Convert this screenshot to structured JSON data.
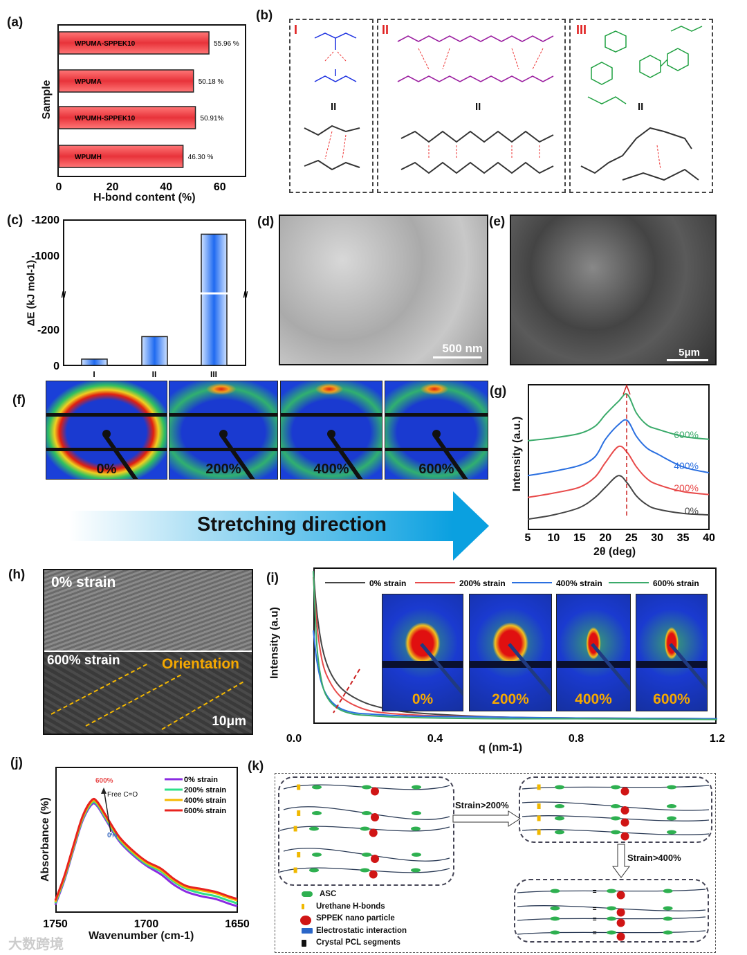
{
  "panel_labels": {
    "a": "(a)",
    "b": "(b)",
    "c": "(c)",
    "d": "(d)",
    "e": "(e)",
    "f": "(f)",
    "g": "(g)",
    "h": "(h)",
    "i": "(i)",
    "j": "(j)",
    "k": "(k)"
  },
  "chart_data": [
    {
      "id": "a",
      "type": "bar",
      "orientation": "horizontal",
      "title": "",
      "xlabel": "H-bond content (%)",
      "ylabel": "Sample",
      "xlim": [
        0,
        70
      ],
      "xticks": [
        "0",
        "20",
        "40",
        "60"
      ],
      "categories": [
        "WPUMA-SPPEK10",
        "WPUMA",
        "WPUMH-SPPEK10",
        "WPUMH"
      ],
      "values": [
        55.96,
        50.18,
        50.91,
        46.3
      ],
      "data_labels": [
        "55.96 %",
        "50.18 %",
        "50.91%",
        "46.30 %"
      ],
      "color": "#e8333a"
    },
    {
      "id": "c",
      "type": "bar",
      "title": "",
      "xlabel": "",
      "ylabel": "ΔE (kJ mol-1)",
      "axis_break": true,
      "yticks": [
        "0",
        "-200",
        "-1000",
        "-1200"
      ],
      "categories": [
        "I",
        "II",
        "III"
      ],
      "values": [
        -35,
        -160,
        -1040
      ],
      "color": "#2f7cf0"
    },
    {
      "id": "g",
      "type": "line",
      "xlabel": "2θ (deg)",
      "ylabel": "Intensity (a.u.)",
      "xlim": [
        5,
        40
      ],
      "ylim": [
        0,
        10
      ],
      "xticks": [
        "5",
        "10",
        "15",
        "20",
        "25",
        "30",
        "35",
        "40"
      ],
      "x": [
        5,
        10,
        15,
        18,
        20,
        22.5,
        24.2,
        26,
        28,
        30,
        35,
        40
      ],
      "series": [
        {
          "name": "0%",
          "color": "#444444",
          "values": [
            0.7,
            1.0,
            1.5,
            2.2,
            2.9,
            3.7,
            3.2,
            2.3,
            1.7,
            1.4,
            1.1,
            1.0
          ]
        },
        {
          "name": "200%",
          "color": "#e84a4a",
          "values": [
            2.2,
            2.5,
            2.9,
            3.6,
            4.6,
            5.7,
            5.3,
            4.3,
            3.5,
            3.1,
            2.6,
            2.4
          ]
        },
        {
          "name": "400%",
          "color": "#2a6fe0",
          "values": [
            3.7,
            4.0,
            4.4,
            5.0,
            6.2,
            7.2,
            7.5,
            6.4,
            5.6,
            5.2,
            4.3,
            3.9
          ]
        },
        {
          "name": "600%",
          "color": "#3aaa6a",
          "values": [
            6.1,
            6.3,
            6.6,
            7.1,
            7.9,
            8.8,
            9.3,
            8.0,
            7.2,
            6.9,
            6.4,
            6.2
          ]
        }
      ],
      "annotation": "dashed arrow at 2θ≈24"
    },
    {
      "id": "i",
      "type": "line",
      "xlabel": "q (nm-1)",
      "ylabel": "Intensity (a.u)",
      "xlim": [
        0.0,
        1.2
      ],
      "ylim": [
        0,
        10
      ],
      "xticks": [
        "0.0",
        "0.4",
        "0.8",
        "1.2"
      ],
      "x": [
        0.055,
        0.065,
        0.08,
        0.1,
        0.13,
        0.17,
        0.22,
        0.3,
        0.4,
        0.6,
        0.8,
        1.2
      ],
      "series": [
        {
          "name": "0% strain",
          "color": "#444444",
          "values": [
            9.9,
            7.2,
            4.9,
            3.4,
            2.3,
            1.6,
            1.1,
            0.7,
            0.5,
            0.3,
            0.25,
            0.2
          ]
        },
        {
          "name": "200% strain",
          "color": "#e84a4a",
          "values": [
            9.5,
            6.4,
            4.0,
            2.7,
            1.7,
            1.1,
            0.7,
            0.5,
            0.4,
            0.3,
            0.25,
            0.2
          ]
        },
        {
          "name": "400% strain",
          "color": "#2a6fe0",
          "values": [
            6.0,
            4.0,
            2.4,
            1.5,
            0.9,
            0.6,
            0.5,
            0.4,
            0.35,
            0.3,
            0.25,
            0.2
          ]
        },
        {
          "name": "600% strain",
          "color": "#3aaa6a",
          "values": [
            9.9,
            5.0,
            2.5,
            1.4,
            0.8,
            0.5,
            0.4,
            0.3,
            0.25,
            0.2,
            0.2,
            0.15
          ]
        }
      ]
    },
    {
      "id": "j",
      "type": "line",
      "xlabel": "Wavenumber (cm-1)",
      "ylabel": "Absorbance (%)",
      "xlim": [
        1750,
        1650
      ],
      "ylim": [
        0,
        10
      ],
      "xticks": [
        "1750",
        "1700",
        "1650"
      ],
      "x": [
        1750,
        1745,
        1740,
        1735,
        1730,
        1727,
        1722,
        1715,
        1708,
        1700,
        1692,
        1685,
        1678,
        1670,
        1662,
        1655,
        1650
      ],
      "series": [
        {
          "name": "0% strain",
          "color": "#8a2be2",
          "values": [
            0.5,
            2.2,
            4.3,
            6.3,
            7.4,
            7.3,
            6.3,
            4.9,
            4.0,
            3.2,
            2.6,
            1.9,
            1.4,
            1.1,
            0.9,
            0.6,
            0.4
          ]
        },
        {
          "name": "200% strain",
          "color": "#2ee08a",
          "values": [
            0.6,
            2.3,
            4.4,
            6.4,
            7.5,
            7.4,
            6.4,
            5.0,
            4.1,
            3.3,
            2.8,
            2.1,
            1.6,
            1.3,
            1.1,
            0.8,
            0.6
          ]
        },
        {
          "name": "400% strain",
          "color": "#f5b800",
          "values": [
            0.7,
            2.4,
            4.5,
            6.5,
            7.6,
            7.5,
            6.5,
            5.1,
            4.2,
            3.4,
            2.9,
            2.2,
            1.7,
            1.5,
            1.3,
            1.0,
            0.8
          ]
        },
        {
          "name": "600% strain",
          "color": "#e8231f",
          "values": [
            0.8,
            2.5,
            4.6,
            6.6,
            7.7,
            7.6,
            6.6,
            5.2,
            4.3,
            3.5,
            3.0,
            2.3,
            1.8,
            1.6,
            1.4,
            1.1,
            0.9
          ]
        }
      ],
      "annotations": {
        "top": "600%",
        "bottom": "0%",
        "arrow": "Free C=O"
      }
    }
  ],
  "b": {
    "sections": [
      "I",
      "II",
      "III"
    ],
    "divider": "II",
    "atoms": {
      "H": "H",
      "N": "N",
      "O": "O"
    }
  },
  "d": {
    "scalebar": "500 nm"
  },
  "e": {
    "scalebar": "5μm"
  },
  "f": {
    "labels": [
      "0%",
      "200%",
      "400%",
      "600%"
    ],
    "arrow_text": "Stretching direction"
  },
  "h": {
    "top_label": "0% strain",
    "bottom_label": "600% strain",
    "orientation": "Orientation",
    "scalebar": "10μm"
  },
  "i_insets": [
    "0%",
    "200%",
    "400%",
    "600%"
  ],
  "k": {
    "strain1": "Strain>200%",
    "strain2": "Strain>400%",
    "legend": [
      "ASC",
      "Urethane H-bonds",
      "SPPEK nano particle",
      "Electrostatic interaction",
      "Crystal PCL segments"
    ]
  },
  "watermark": "大数跨境"
}
